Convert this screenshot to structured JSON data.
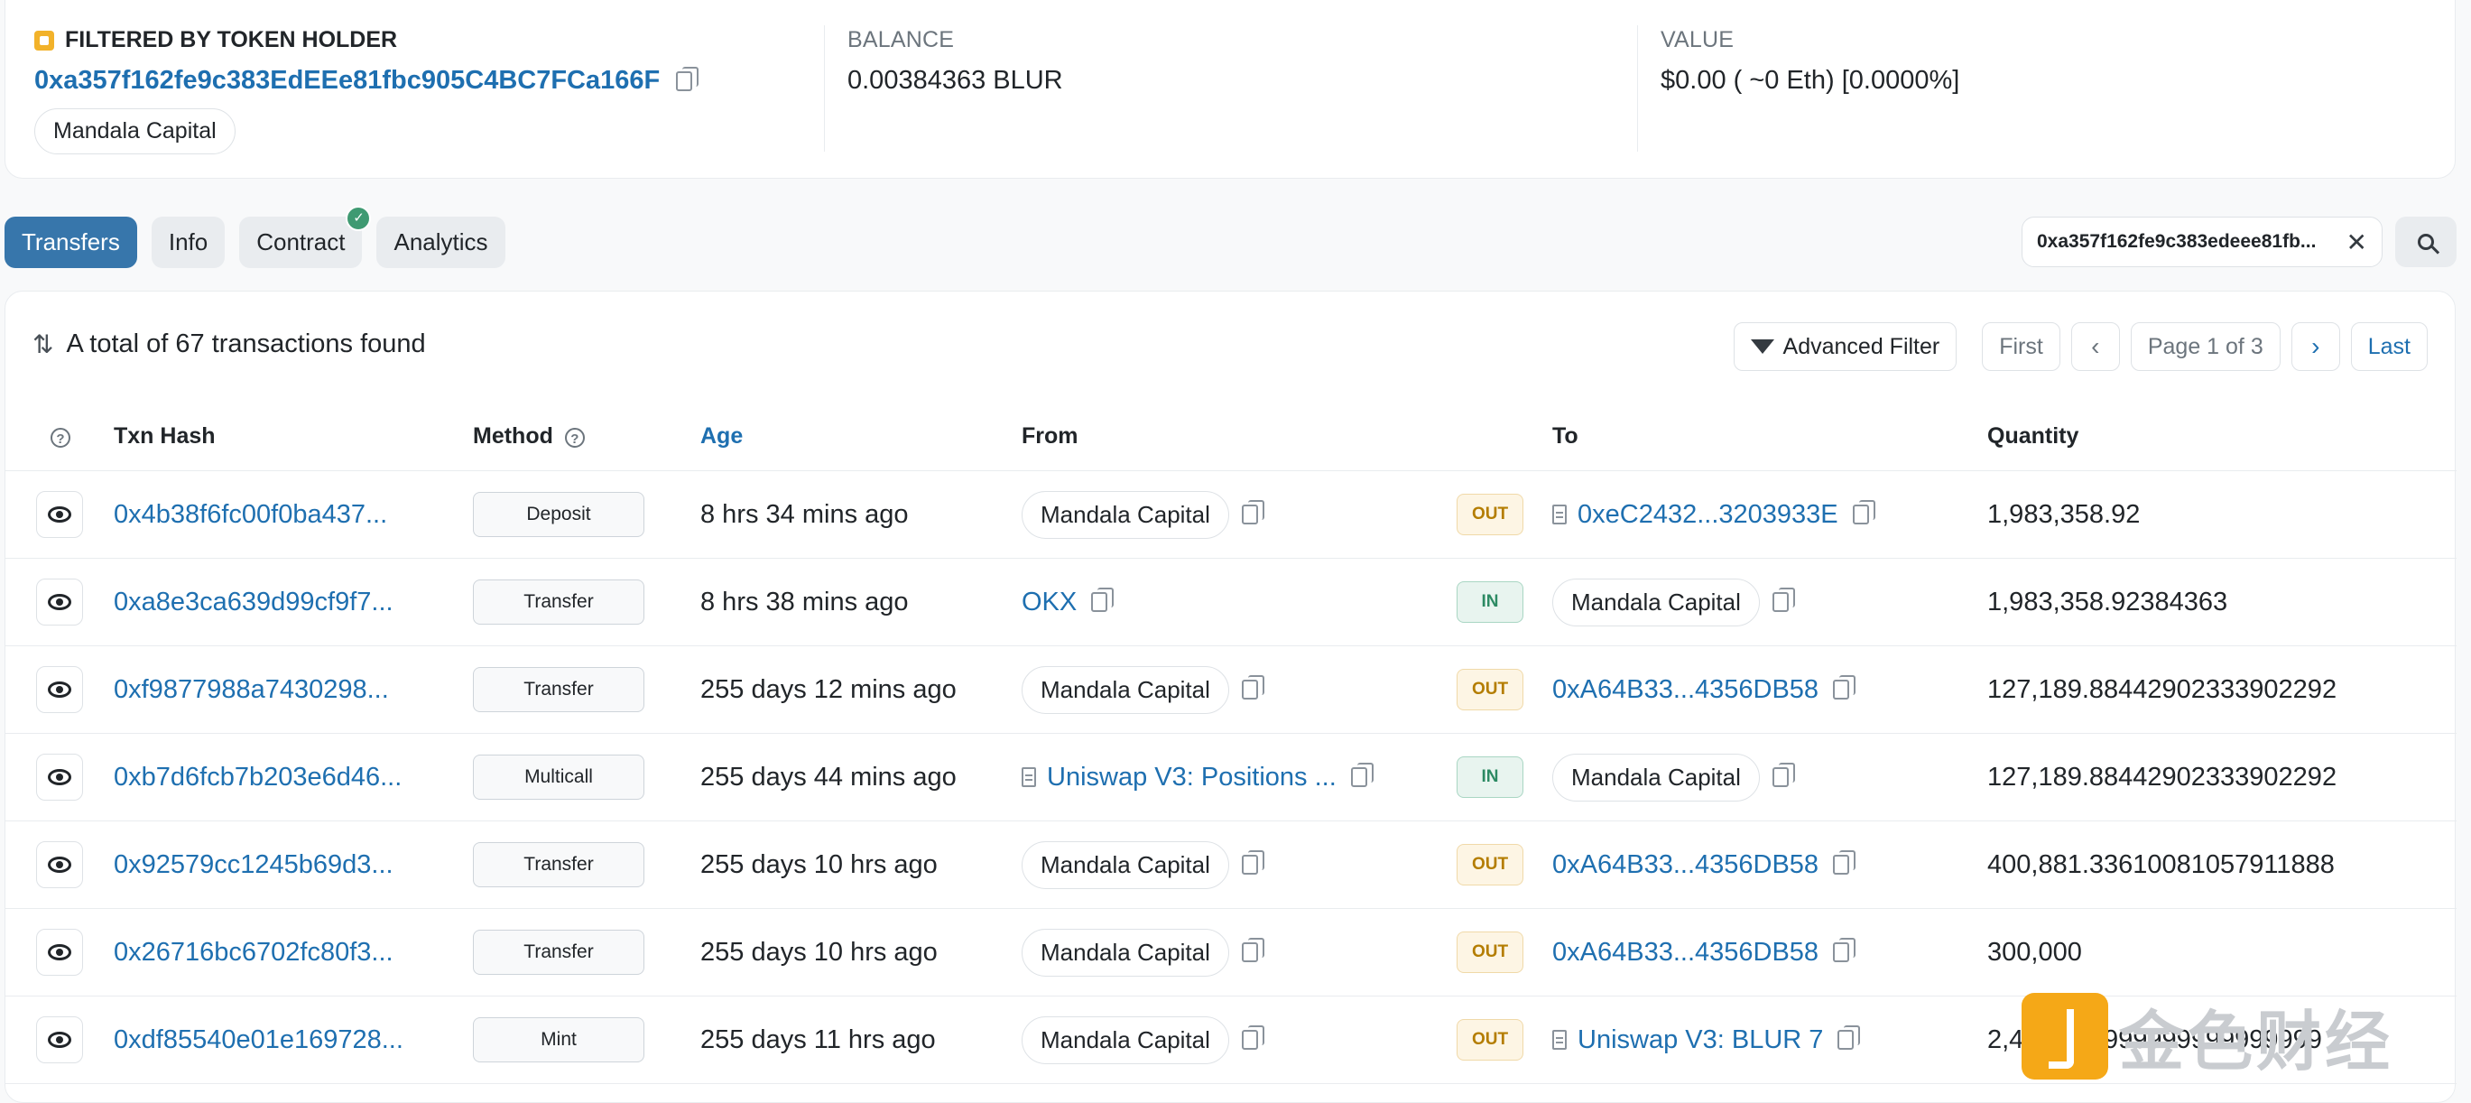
{
  "holder": {
    "label": "FILTERED BY TOKEN HOLDER",
    "address": "0xa357f162fe9c383EdEEe81fbc905C4BC7FCa166F",
    "name_tag": "Mandala Capital",
    "balance_label": "BALANCE",
    "balance_value": "0.00384363 BLUR",
    "value_label": "VALUE",
    "value_value": "$0.00 ( ~0 Eth) [0.0000%]"
  },
  "tabs": [
    {
      "label": "Transfers",
      "active": true
    },
    {
      "label": "Info",
      "active": false
    },
    {
      "label": "Contract",
      "active": false,
      "verified": true
    },
    {
      "label": "Analytics",
      "active": false
    }
  ],
  "search": {
    "chip_text": "0xa357f162fe9c383edeee81fb..."
  },
  "summary": {
    "text": "A total of 67 transactions found"
  },
  "toolbar": {
    "advanced_filter": "Advanced Filter",
    "first": "First",
    "page": "Page 1 of 3",
    "last": "Last"
  },
  "columns": {
    "txn_hash": "Txn Hash",
    "method": "Method",
    "age": "Age",
    "from": "From",
    "to": "To",
    "quantity": "Quantity"
  },
  "rows": [
    {
      "hash": "0x4b38f6fc00f0ba437...",
      "method": "Deposit",
      "age": "8 hrs 34 mins ago",
      "from": "Mandala Capital",
      "from_type": "pill",
      "dir": "OUT",
      "to": "0xeC2432...3203933E",
      "to_type": "contract",
      "qty": "1,983,358.92"
    },
    {
      "hash": "0xa8e3ca639d99cf9f7...",
      "method": "Transfer",
      "age": "8 hrs 38 mins ago",
      "from": "OKX",
      "from_type": "link",
      "dir": "IN",
      "to": "Mandala Capital",
      "to_type": "pill",
      "qty": "1,983,358.92384363"
    },
    {
      "hash": "0xf9877988a7430298...",
      "method": "Transfer",
      "age": "255 days 12 mins ago",
      "from": "Mandala Capital",
      "from_type": "pill",
      "dir": "OUT",
      "to": "0xA64B33...4356DB58",
      "to_type": "link",
      "qty": "127,189.88442902333902292"
    },
    {
      "hash": "0xb7d6fcb7b203e6d46...",
      "method": "Multicall",
      "age": "255 days 44 mins ago",
      "from": "Uniswap V3: Positions ...",
      "from_type": "contract",
      "dir": "IN",
      "to": "Mandala Capital",
      "to_type": "pill",
      "qty": "127,189.88442902333902292"
    },
    {
      "hash": "0x92579cc1245b69d3...",
      "method": "Transfer",
      "age": "255 days 10 hrs ago",
      "from": "Mandala Capital",
      "from_type": "pill",
      "dir": "OUT",
      "to": "0xA64B33...4356DB58",
      "to_type": "link",
      "qty": "400,881.33610081057911888"
    },
    {
      "hash": "0x26716bc6702fc80f3...",
      "method": "Transfer",
      "age": "255 days 10 hrs ago",
      "from": "Mandala Capital",
      "from_type": "pill",
      "dir": "OUT",
      "to": "0xA64B33...4356DB58",
      "to_type": "link",
      "qty": "300,000"
    },
    {
      "hash": "0xdf85540e01e169728...",
      "method": "Mint",
      "age": "255 days 11 hrs ago",
      "from": "Mandala Capital",
      "from_type": "pill",
      "dir": "OUT",
      "to": "Uniswap V3: BLUR 7",
      "to_type": "contract",
      "qty": "2,499,999999999999999999"
    }
  ],
  "watermark": {
    "text": "金色财经"
  },
  "colors": {
    "accent": "#3776ab",
    "link": "#1e6fb0",
    "out_badge": "#b47d00",
    "in_badge": "#2c8a63"
  }
}
